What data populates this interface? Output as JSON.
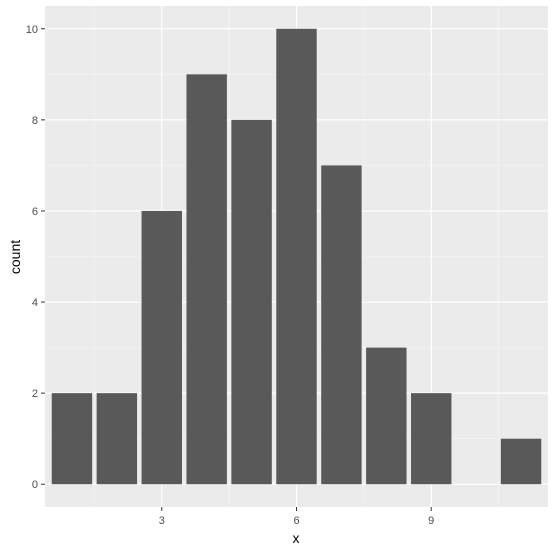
{
  "chart_data": {
    "type": "bar",
    "x": [
      1,
      2,
      3,
      4,
      5,
      6,
      7,
      8,
      9,
      11
    ],
    "values": [
      2,
      2,
      6,
      9,
      8,
      10,
      7,
      3,
      2,
      1
    ],
    "xlabel": "x",
    "ylabel": "count",
    "xlim": [
      0.4,
      11.6
    ],
    "ylim": [
      -0.5,
      10.5
    ],
    "x_major_ticks": [
      3,
      6,
      9
    ],
    "x_minor_ticks": [
      1.5,
      4.5,
      7.5,
      10.5
    ],
    "y_major_ticks": [
      0,
      2,
      4,
      6,
      8,
      10
    ],
    "y_minor_ticks": [
      1,
      3,
      5,
      7,
      9
    ],
    "bar_width": 0.9,
    "grid": true,
    "colors": {
      "panel": "#ebebeb",
      "grid_major": "#ffffff",
      "grid_minor": "#f5f5f5",
      "bar": "#595959",
      "tick": "#333333"
    }
  }
}
